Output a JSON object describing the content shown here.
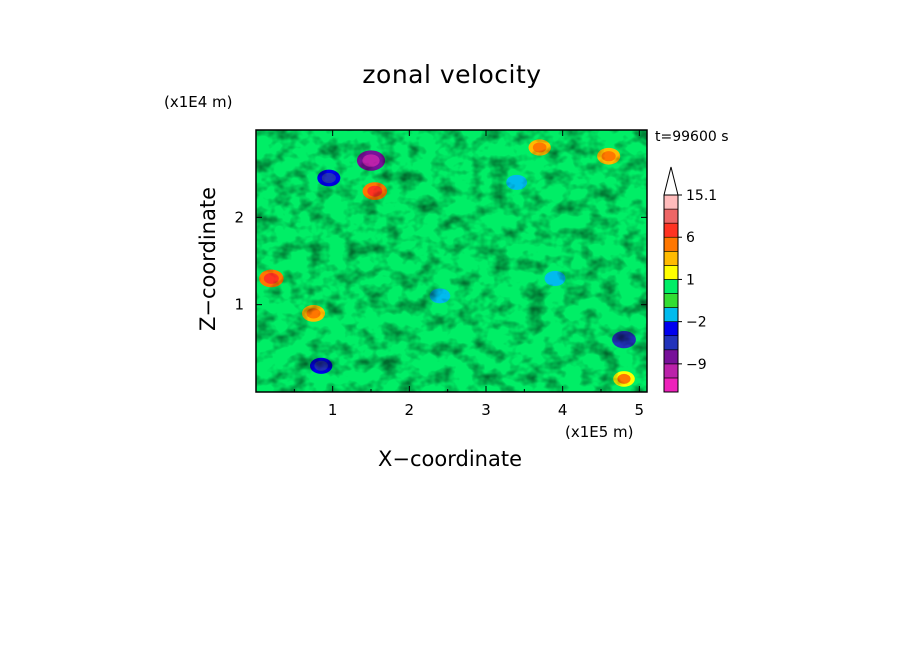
{
  "chart_data": {
    "type": "heatmap",
    "title": "zonal velocity",
    "xlabel": "X−coordinate",
    "ylabel": "Z−coordinate",
    "x_unit": "(x1E5 m)",
    "y_unit": "(x1E4 m)",
    "annotation": "t=99600 s",
    "xlim": [
      0.0,
      5.1
    ],
    "ylim": [
      0.0,
      3.0
    ],
    "x_ticks": [
      1,
      2,
      3,
      4,
      5
    ],
    "y_ticks": [
      1,
      2
    ],
    "colorbar": {
      "levels": [
        -15,
        -12,
        -9,
        -6,
        -3,
        -2,
        -1,
        0,
        1,
        2,
        3,
        6,
        9,
        12,
        15.1
      ],
      "colors": [
        "#ee22bb",
        "#bb22aa",
        "#771199",
        "#2233bb",
        "#0000ee",
        "#00bbee",
        "#33dd33",
        "#00ee66",
        "#ffff00",
        "#ffbb00",
        "#ff7700",
        "#ff3322",
        "#ee6666",
        "#ffbbbb"
      ],
      "labeled": [
        {
          "value": "15.1",
          "level_index": 14
        },
        {
          "value": "6",
          "level_index": 11
        },
        {
          "value": "1",
          "level_index": 8
        },
        {
          "value": "−2",
          "level_index": 5
        },
        {
          "value": "−9",
          "level_index": 2
        }
      ]
    },
    "field_features": [
      {
        "x": 1.5,
        "z": 2.65,
        "value": -12
      },
      {
        "x": 0.95,
        "z": 2.45,
        "value": -5
      },
      {
        "x": 1.55,
        "z": 2.3,
        "value": 7
      },
      {
        "x": 0.2,
        "z": 1.3,
        "value": 7
      },
      {
        "x": 0.75,
        "z": 0.9,
        "value": 5
      },
      {
        "x": 3.7,
        "z": 2.8,
        "value": 4
      },
      {
        "x": 4.6,
        "z": 2.7,
        "value": 5
      },
      {
        "x": 2.4,
        "z": 1.1,
        "value": -1.5
      },
      {
        "x": 3.9,
        "z": 1.3,
        "value": -2
      },
      {
        "x": 4.8,
        "z": 0.6,
        "value": -6
      },
      {
        "x": 4.8,
        "z": 0.15,
        "value": 3
      },
      {
        "x": 3.4,
        "z": 2.4,
        "value": -2
      },
      {
        "x": 0.85,
        "z": 0.3,
        "value": -4
      }
    ]
  }
}
